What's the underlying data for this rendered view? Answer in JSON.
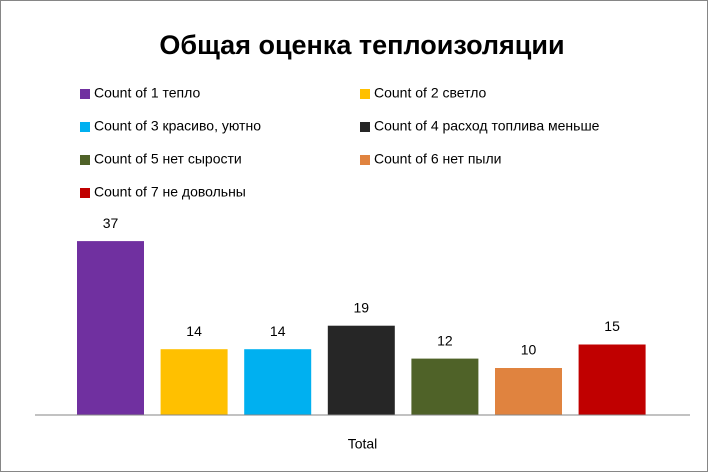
{
  "chart_data": {
    "type": "bar",
    "title": "Общая оценка теплоизоляции",
    "categories": [
      "Total"
    ],
    "series": [
      {
        "name": "Count of 1 тепло",
        "color": "#7030a0",
        "values": [
          37
        ]
      },
      {
        "name": "Count of 2 светло",
        "color": "#ffc000",
        "values": [
          14
        ]
      },
      {
        "name": "Count of 3 красиво, уютно",
        "color": "#00b0f0",
        "values": [
          14
        ]
      },
      {
        "name": "Count of 4 расход топлива меньше",
        "color": "#262626",
        "values": [
          19
        ]
      },
      {
        "name": "Count of 5 нет сырости",
        "color": "#4f6228",
        "values": [
          12
        ]
      },
      {
        "name": "Count of 6 нет пыли",
        "color": "#e0833f",
        "values": [
          10
        ]
      },
      {
        "name": "Count of 7 не довольны",
        "color": "#c00000",
        "values": [
          15
        ]
      }
    ],
    "ylim": [
      0,
      40
    ],
    "legend": "top"
  }
}
